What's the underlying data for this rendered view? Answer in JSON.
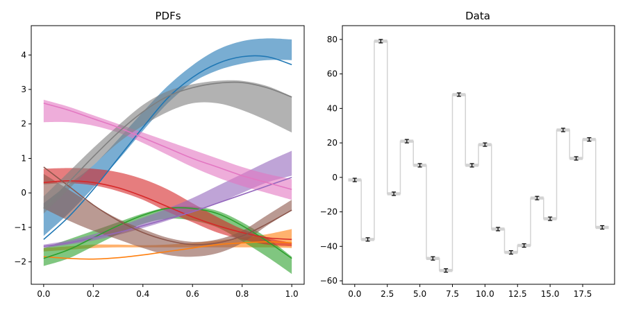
{
  "chart_data": [
    {
      "type": "line",
      "title": "PDFs",
      "xlim": [
        -0.05,
        1.05
      ],
      "ylim": [
        -2.65,
        4.85
      ],
      "xticks": [
        0.0,
        0.2,
        0.4,
        0.6,
        0.8,
        1.0
      ],
      "xtick_labels": [
        "0.0",
        "0.2",
        "0.4",
        "0.6",
        "0.8",
        "1.0"
      ],
      "yticks": [
        -2,
        -1,
        0,
        1,
        2,
        3,
        4
      ],
      "ytick_labels": [
        "−2",
        "−1",
        "0",
        "1",
        "2",
        "3",
        "4"
      ],
      "x": [
        0.0,
        0.1,
        0.2,
        0.3,
        0.4,
        0.5,
        0.6,
        0.7,
        0.8,
        0.9,
        1.0
      ],
      "series": [
        {
          "color": "#1f77b4",
          "values": [
            -1.35,
            -0.7,
            0.1,
            1.0,
            1.9,
            2.75,
            3.35,
            3.75,
            3.95,
            3.95,
            3.72
          ],
          "lower": [
            -1.25,
            -0.6,
            0.15,
            0.95,
            1.8,
            2.6,
            3.2,
            3.55,
            3.75,
            3.85,
            3.85
          ],
          "upper": [
            -0.3,
            0.25,
            0.8,
            1.55,
            2.35,
            3.1,
            3.7,
            4.15,
            4.4,
            4.48,
            4.45
          ]
        },
        {
          "color": "#ff7f0e",
          "values": [
            -1.85,
            -1.9,
            -1.92,
            -1.88,
            -1.8,
            -1.7,
            -1.6,
            -1.5,
            -1.45,
            -1.42,
            -1.45
          ],
          "lower": [
            -1.7,
            -1.65,
            -1.6,
            -1.58,
            -1.58,
            -1.58,
            -1.58,
            -1.58,
            -1.58,
            -1.58,
            -1.6
          ],
          "upper": [
            -1.6,
            -1.55,
            -1.5,
            -1.5,
            -1.52,
            -1.5,
            -1.45,
            -1.38,
            -1.3,
            -1.2,
            -1.05
          ]
        },
        {
          "color": "#2ca02c",
          "values": [
            -1.9,
            -1.65,
            -1.3,
            -0.95,
            -0.65,
            -0.45,
            -0.45,
            -0.6,
            -0.95,
            -1.4,
            -1.9
          ],
          "lower": [
            -2.12,
            -1.9,
            -1.55,
            -1.2,
            -0.9,
            -0.75,
            -0.8,
            -1.0,
            -1.4,
            -1.85,
            -2.35
          ],
          "upper": [
            -1.6,
            -1.35,
            -1.1,
            -0.85,
            -0.6,
            -0.42,
            -0.4,
            -0.52,
            -0.85,
            -1.3,
            -1.85
          ]
        },
        {
          "color": "#d62728",
          "values": [
            0.3,
            0.35,
            0.3,
            0.15,
            -0.1,
            -0.4,
            -0.7,
            -0.95,
            -1.15,
            -1.3,
            -1.35
          ],
          "lower": [
            0.25,
            0.28,
            0.22,
            0.05,
            -0.2,
            -0.55,
            -0.85,
            -1.15,
            -1.35,
            -1.5,
            -1.55
          ],
          "upper": [
            0.7,
            0.72,
            0.7,
            0.6,
            0.4,
            0.1,
            -0.3,
            -0.7,
            -1.05,
            -1.3,
            -1.45
          ]
        },
        {
          "color": "#9467bd",
          "values": [
            -1.55,
            -1.45,
            -1.3,
            -1.15,
            -0.95,
            -0.75,
            -0.55,
            -0.3,
            -0.05,
            0.2,
            0.45
          ],
          "lower": [
            -1.6,
            -1.5,
            -1.38,
            -1.22,
            -1.02,
            -0.8,
            -0.55,
            -0.3,
            0.0,
            0.3,
            0.5
          ],
          "upper": [
            -1.5,
            -1.38,
            -1.2,
            -0.98,
            -0.72,
            -0.45,
            -0.15,
            0.2,
            0.55,
            0.9,
            1.22
          ]
        },
        {
          "color": "#8c564b",
          "values": [
            0.75,
            0.2,
            -0.35,
            -0.8,
            -1.15,
            -1.38,
            -1.5,
            -1.45,
            -1.25,
            -0.9,
            -0.5
          ],
          "lower": [
            -0.45,
            -0.8,
            -1.1,
            -1.35,
            -1.6,
            -1.8,
            -1.85,
            -1.75,
            -1.45,
            -0.95,
            -0.5
          ],
          "upper": [
            0.55,
            0.1,
            -0.35,
            -0.75,
            -1.05,
            -1.3,
            -1.42,
            -1.35,
            -1.1,
            -0.65,
            -0.2
          ]
        },
        {
          "color": "#e377c2",
          "values": [
            2.6,
            2.4,
            2.15,
            1.9,
            1.6,
            1.3,
            1.0,
            0.75,
            0.5,
            0.3,
            0.1
          ],
          "lower": [
            2.05,
            2.05,
            1.95,
            1.75,
            1.45,
            1.1,
            0.75,
            0.45,
            0.2,
            0.0,
            -0.2
          ],
          "upper": [
            2.7,
            2.5,
            2.25,
            2.0,
            1.75,
            1.5,
            1.25,
            1.0,
            0.75,
            0.55,
            0.4
          ]
        },
        {
          "color": "#7f7f7f",
          "values": [
            -0.45,
            0.3,
            1.05,
            1.75,
            2.35,
            2.8,
            3.05,
            3.18,
            3.2,
            3.05,
            2.78
          ],
          "lower": [
            -0.6,
            0.1,
            0.8,
            1.45,
            1.95,
            2.35,
            2.6,
            2.6,
            2.4,
            2.1,
            1.75
          ],
          "upper": [
            -0.1,
            0.6,
            1.3,
            1.95,
            2.55,
            2.95,
            3.15,
            3.25,
            3.25,
            3.1,
            2.8
          ]
        }
      ]
    },
    {
      "type": "line",
      "title": "Data",
      "xlim": [
        -0.95,
        19.95
      ],
      "ylim": [
        -62,
        88
      ],
      "xticks": [
        0.0,
        2.5,
        5.0,
        7.5,
        10.0,
        12.5,
        15.0,
        17.5
      ],
      "xtick_labels": [
        "0.0",
        "2.5",
        "5.0",
        "7.5",
        "10.0",
        "12.5",
        "15.0",
        "17.5"
      ],
      "yticks": [
        -60,
        -40,
        -20,
        0,
        20,
        40,
        60,
        80
      ],
      "ytick_labels": [
        "−60",
        "−40",
        "−20",
        "0",
        "20",
        "40",
        "60",
        "80"
      ],
      "step_color": "#d3d3d3",
      "errorbar_color": "#000000",
      "x": [
        0,
        1,
        2,
        3,
        4,
        5,
        6,
        7,
        8,
        9,
        10,
        11,
        12,
        13,
        14,
        15,
        16,
        17,
        18,
        19
      ],
      "values": [
        -1.5,
        -36,
        79,
        -9.5,
        21,
        7,
        -47,
        -54,
        48,
        7,
        19,
        -30,
        -43.5,
        -39.5,
        -12,
        -24,
        27.5,
        11,
        22,
        -29
      ],
      "errors": [
        1,
        1,
        1,
        1,
        1,
        1,
        1,
        1,
        1,
        1,
        1,
        1,
        1,
        1,
        1,
        1,
        1,
        1,
        1,
        1
      ]
    }
  ]
}
